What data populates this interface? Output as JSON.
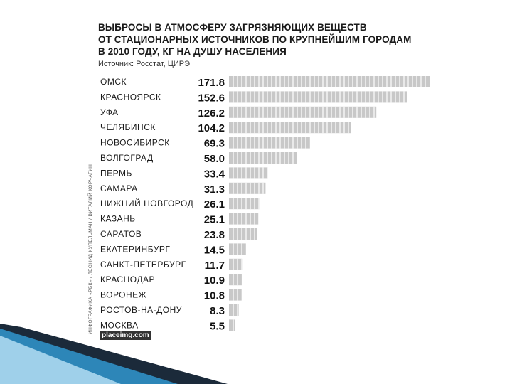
{
  "header": {
    "title_lines": [
      "ВЫБРОСЫ В АТМОСФЕРУ ЗАГРЯЗНЯЮЩИХ ВЕЩЕСТВ",
      "ОТ СТАЦИОНАРНЫХ ИСТОЧНИКОВ ПО КРУПНЕЙШИМ ГОРОДАМ",
      "В 2010 ГОДУ, КГ НА ДУШУ НАСЕЛЕНИЯ"
    ],
    "source": "Источник: Росстат, ЦИРЭ"
  },
  "credit": "ИНФОГРАФИКА «РБК» / ЛЕОНИД КУПЕЛЬМАН / ВИТАЛИЙ КОРЧАГИН",
  "watermark": "placeimg.com",
  "chart_data": {
    "type": "bar",
    "orientation": "horizontal",
    "categories": [
      "ОМСК",
      "КРАСНОЯРСК",
      "УФА",
      "ЧЕЛЯБИНСК",
      "НОВОСИБИРСК",
      "ВОЛГОГРАД",
      "ПЕРМЬ",
      "САМАРА",
      "НИЖНИЙ НОВГОРОД",
      "КАЗАНЬ",
      "САРАТОВ",
      "ЕКАТЕРИНБУРГ",
      "САНКТ-ПЕТЕРБУРГ",
      "КРАСНОДАР",
      "ВОРОНЕЖ",
      "РОСТОВ-НА-ДОНУ",
      "МОСКВА"
    ],
    "values": [
      171.8,
      152.6,
      126.2,
      104.2,
      69.3,
      58.0,
      33.4,
      31.3,
      26.1,
      25.1,
      23.8,
      14.5,
      11.7,
      10.9,
      10.8,
      8.3,
      5.5
    ],
    "value_labels": [
      "171.8",
      "152.6",
      "126.2",
      "104.2",
      "69.3",
      "58.0",
      "33.4",
      "31.3",
      "26.1",
      "25.1",
      "23.8",
      "14.5",
      "11.7",
      "10.9",
      "10.8",
      "8.3",
      "5.5"
    ],
    "bar_color": "#c8c8c8",
    "bar_segment_line_color": "#ffffff"
  },
  "theme": {
    "accent_dark": "#1b2a3a",
    "accent_blue": "#2d86b8",
    "accent_light": "#9fd0ea"
  }
}
